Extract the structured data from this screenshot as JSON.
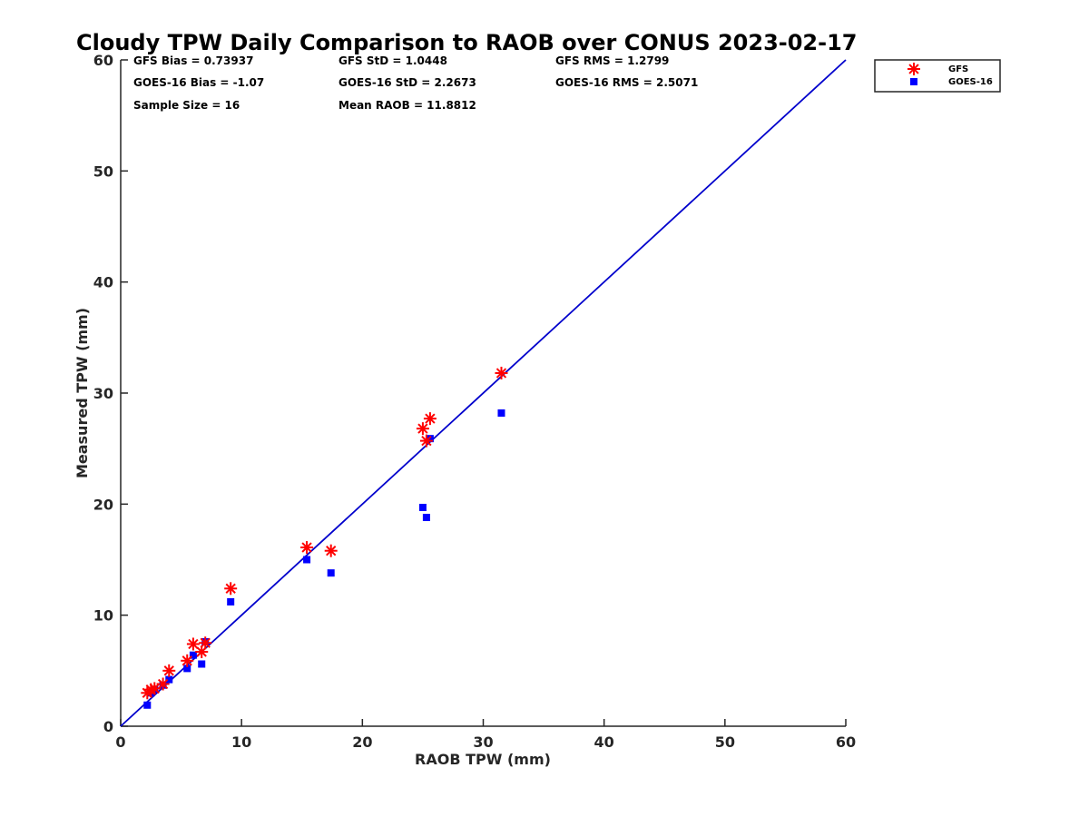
{
  "chart_data": {
    "type": "scatter",
    "title": "Cloudy TPW Daily Comparison to RAOB over CONUS 2023-02-17",
    "xlabel": "RAOB TPW (mm)",
    "ylabel": "Measured TPW (mm)",
    "xlim": [
      0,
      60
    ],
    "ylim": [
      0,
      60
    ],
    "xticks": [
      0,
      10,
      20,
      30,
      40,
      50,
      60
    ],
    "yticks": [
      0,
      10,
      20,
      30,
      40,
      50,
      60
    ],
    "tick_labels_x": [
      "0",
      "10",
      "20",
      "30",
      "40",
      "50",
      "60"
    ],
    "tick_labels_y": [
      "0",
      "10",
      "20",
      "30",
      "40",
      "50",
      "60"
    ],
    "grid": false,
    "legend_position": "top-right, outside plot",
    "reference_line": {
      "from": [
        0,
        0
      ],
      "to": [
        60,
        60
      ],
      "color": "#0000cc"
    },
    "stats": {
      "gfs_bias": "GFS Bias = 0.73937",
      "gfs_std": "GFS StD = 1.0448",
      "gfs_rms": "GFS RMS = 1.2799",
      "goes_bias": "GOES-16 Bias = -1.07",
      "goes_std": "GOES-16 StD = 2.2673",
      "goes_rms": "GOES-16 RMS = 2.5071",
      "sample_size": "Sample Size = 16",
      "mean_raob": "Mean RAOB = 11.8812"
    },
    "series": [
      {
        "name": "GFS",
        "marker": "asterisk",
        "color": "#ff0000",
        "x": [
          2.2,
          2.5,
          3.5,
          4.0,
          5.5,
          6.0,
          6.7,
          7.0,
          9.1,
          15.4,
          17.4,
          25.0,
          25.3,
          25.6,
          31.5,
          2.8
        ],
        "y": [
          3.0,
          3.3,
          3.8,
          5.0,
          5.9,
          7.4,
          6.7,
          7.5,
          12.4,
          16.1,
          15.8,
          26.8,
          25.7,
          27.7,
          31.8,
          3.4
        ]
      },
      {
        "name": "GOES-16",
        "marker": "square",
        "color": "#0000ff",
        "x": [
          2.2,
          2.5,
          3.5,
          4.0,
          5.5,
          6.0,
          6.7,
          7.0,
          9.1,
          15.4,
          17.4,
          25.0,
          25.3,
          25.6,
          31.5,
          2.8
        ],
        "y": [
          1.9,
          3.0,
          3.7,
          4.2,
          5.2,
          6.4,
          5.6,
          7.6,
          11.2,
          15.0,
          13.8,
          19.7,
          18.8,
          25.9,
          28.2,
          3.3
        ]
      }
    ]
  }
}
